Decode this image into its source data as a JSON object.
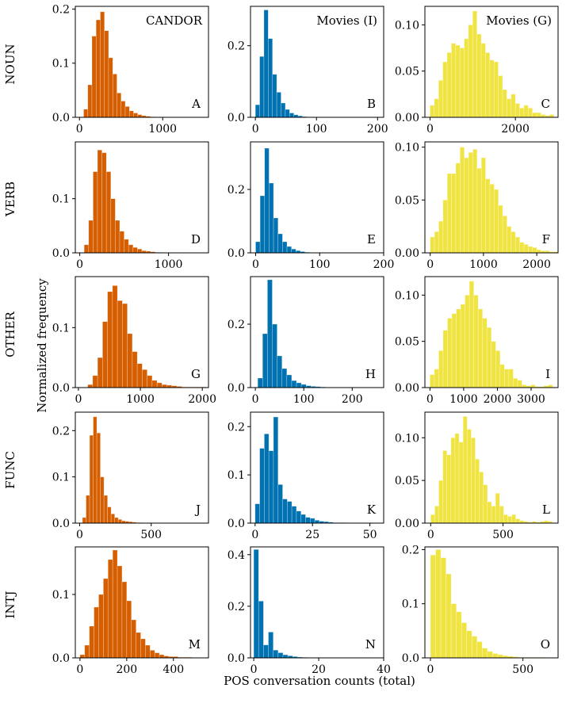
{
  "figure": {
    "ylabel": "Normalized frequency",
    "xlabel": "POS conversation counts (total)",
    "columns": [
      "CANDOR",
      "Movies (I)",
      "Movies (G)"
    ],
    "rows": [
      "NOUN",
      "VERB",
      "OTHER",
      "FUNC",
      "INTJ"
    ]
  },
  "colors": {
    "CANDOR": "#d55e00",
    "Movies (I)": "#0072b2",
    "Movies (G)": "#f0e442"
  },
  "chart_data": [
    {
      "type": "bar",
      "panel": "A",
      "row": "NOUN",
      "dataset": "CANDOR",
      "title": "CANDOR",
      "bin_start": 50,
      "bin_width": 50,
      "values": [
        0.015,
        0.06,
        0.15,
        0.18,
        0.195,
        0.16,
        0.11,
        0.08,
        0.045,
        0.03,
        0.02,
        0.012,
        0.008,
        0.005,
        0.003,
        0.002,
        0.001
      ],
      "xlim": [
        -50,
        1550
      ],
      "ylim": [
        0,
        0.205
      ],
      "xticks": [
        0,
        1000
      ],
      "yticks": [
        0,
        0.1,
        0.2
      ],
      "yticklabels": [
        "0.0",
        "0.1",
        "0.2"
      ]
    },
    {
      "type": "bar",
      "panel": "B",
      "row": "NOUN",
      "dataset": "Movies (I)",
      "title": "Movies (I)",
      "bin_start": 0,
      "bin_width": 7,
      "values": [
        0.035,
        0.17,
        0.3,
        0.22,
        0.12,
        0.07,
        0.04,
        0.022,
        0.012,
        0.007,
        0.004,
        0.002,
        0.001,
        0.001
      ],
      "xlim": [
        -8,
        210
      ],
      "ylim": [
        0,
        0.31
      ],
      "xticks": [
        0,
        100,
        200
      ],
      "yticks": [
        0,
        0.2
      ],
      "yticklabels": [
        "0.0",
        "0.2"
      ]
    },
    {
      "type": "bar",
      "panel": "C",
      "row": "NOUN",
      "dataset": "Movies (G)",
      "title": "Movies (G)",
      "bin_start": 0,
      "bin_width": 100,
      "values": [
        0.013,
        0.02,
        0.04,
        0.06,
        0.07,
        0.08,
        0.078,
        0.075,
        0.085,
        0.1,
        0.115,
        0.09,
        0.08,
        0.07,
        0.062,
        0.06,
        0.045,
        0.03,
        0.02,
        0.025,
        0.015,
        0.01,
        0.013,
        0.01,
        0.005,
        0.005,
        0.003,
        0.002,
        0.003
      ],
      "xlim": [
        -120,
        3000
      ],
      "ylim": [
        0,
        0.12
      ],
      "xticks": [
        0,
        2000
      ],
      "yticks": [
        0,
        0.05,
        0.1
      ],
      "yticklabels": [
        "0.00",
        "0.05",
        "0.10"
      ]
    },
    {
      "type": "bar",
      "panel": "D",
      "row": "VERB",
      "dataset": "CANDOR",
      "bin_start": 50,
      "bin_width": 50,
      "values": [
        0.015,
        0.06,
        0.15,
        0.19,
        0.185,
        0.15,
        0.1,
        0.06,
        0.04,
        0.025,
        0.015,
        0.01,
        0.007,
        0.004,
        0.003,
        0.002,
        0.001
      ],
      "xlim": [
        -50,
        1450
      ],
      "ylim": [
        0,
        0.205
      ],
      "xticks": [
        0,
        1000
      ],
      "yticks": [
        0,
        0.1
      ],
      "yticklabels": [
        "0.0",
        "0.1"
      ]
    },
    {
      "type": "bar",
      "panel": "E",
      "row": "VERB",
      "dataset": "Movies (I)",
      "bin_start": 0,
      "bin_width": 7,
      "values": [
        0.035,
        0.18,
        0.33,
        0.22,
        0.11,
        0.06,
        0.035,
        0.02,
        0.012,
        0.007,
        0.004,
        0.002,
        0.001,
        0.001
      ],
      "xlim": [
        -8,
        200
      ],
      "ylim": [
        0,
        0.35
      ],
      "xticks": [
        0,
        100,
        200
      ],
      "yticks": [
        0,
        0.2
      ],
      "yticklabels": [
        "0.0",
        "0.2"
      ]
    },
    {
      "type": "bar",
      "panel": "F",
      "row": "VERB",
      "dataset": "Movies (G)",
      "bin_start": 0,
      "bin_width": 80,
      "values": [
        0.015,
        0.02,
        0.03,
        0.05,
        0.075,
        0.075,
        0.085,
        0.1,
        0.09,
        0.095,
        0.098,
        0.08,
        0.09,
        0.07,
        0.065,
        0.06,
        0.045,
        0.035,
        0.025,
        0.02,
        0.015,
        0.01,
        0.008,
        0.006,
        0.005,
        0.003,
        0.002,
        0.002,
        0.001,
        0.001
      ],
      "xlim": [
        -100,
        2400
      ],
      "ylim": [
        0,
        0.105
      ],
      "xticks": [
        0,
        1000,
        2000
      ],
      "yticks": [
        0,
        0.05,
        0.1
      ],
      "yticklabels": [
        "0.00",
        "0.05",
        "0.10"
      ]
    },
    {
      "type": "bar",
      "panel": "G",
      "row": "OTHER",
      "dataset": "CANDOR",
      "bin_start": 150,
      "bin_width": 80,
      "values": [
        0.005,
        0.02,
        0.05,
        0.11,
        0.16,
        0.17,
        0.145,
        0.14,
        0.09,
        0.06,
        0.04,
        0.03,
        0.02,
        0.012,
        0.008,
        0.005,
        0.004,
        0.003,
        0.002,
        0.001,
        0.001,
        0.001,
        0.001,
        0.001
      ],
      "xlim": [
        -50,
        2100
      ],
      "ylim": [
        0,
        0.185
      ],
      "xticks": [
        0,
        1000,
        2000
      ],
      "yticks": [
        0,
        0.1
      ],
      "yticklabels": [
        "0.0",
        "0.1"
      ]
    },
    {
      "type": "bar",
      "panel": "H",
      "row": "OTHER",
      "dataset": "Movies (I)",
      "bin_start": 5,
      "bin_width": 10,
      "values": [
        0.03,
        0.17,
        0.34,
        0.2,
        0.1,
        0.06,
        0.04,
        0.022,
        0.015,
        0.01,
        0.006,
        0.004,
        0.003,
        0.002,
        0.001,
        0.001,
        0.001
      ],
      "xlim": [
        -10,
        265
      ],
      "ylim": [
        0,
        0.35
      ],
      "xticks": [
        0,
        100,
        200
      ],
      "yticks": [
        0,
        0.2
      ],
      "yticklabels": [
        "0.0",
        "0.2"
      ]
    },
    {
      "type": "bar",
      "panel": "I",
      "row": "OTHER",
      "dataset": "Movies (G)",
      "bin_start": 0,
      "bin_width": 130,
      "values": [
        0.014,
        0.02,
        0.04,
        0.062,
        0.075,
        0.08,
        0.085,
        0.09,
        0.1,
        0.115,
        0.1,
        0.085,
        0.075,
        0.065,
        0.05,
        0.04,
        0.025,
        0.02,
        0.02,
        0.01,
        0.008,
        0.003,
        0.002,
        0.003,
        0.001,
        0.001,
        0.002,
        0.003
      ],
      "xlim": [
        -150,
        3800
      ],
      "ylim": [
        0,
        0.12
      ],
      "xticks": [
        0,
        1000,
        2000,
        3000
      ],
      "yticks": [
        0,
        0.05,
        0.1
      ],
      "yticklabels": [
        "0.00",
        "0.05",
        "0.10"
      ]
    },
    {
      "type": "bar",
      "panel": "J",
      "row": "FUNC",
      "dataset": "CANDOR",
      "bin_start": 20,
      "bin_width": 25,
      "values": [
        0.012,
        0.06,
        0.19,
        0.23,
        0.195,
        0.1,
        0.06,
        0.035,
        0.02,
        0.012,
        0.008,
        0.005,
        0.004,
        0.003,
        0.002,
        0.001,
        0.001
      ],
      "xlim": [
        -30,
        900
      ],
      "ylim": [
        0,
        0.24
      ],
      "xticks": [
        0,
        500
      ],
      "yticks": [
        0,
        0.1,
        0.2
      ],
      "yticklabels": [
        "0.0",
        "0.1",
        "0.2"
      ]
    },
    {
      "type": "bar",
      "panel": "K",
      "row": "FUNC",
      "dataset": "Movies (I)",
      "bin_start": 0,
      "bin_width": 2,
      "values": [
        0.04,
        0.155,
        0.185,
        0.15,
        0.22,
        0.08,
        0.05,
        0.045,
        0.035,
        0.025,
        0.018,
        0.012,
        0.01,
        0.006,
        0.004,
        0.003,
        0.002,
        0.001,
        0.001,
        0.001
      ],
      "xlim": [
        -2,
        56
      ],
      "ylim": [
        0,
        0.23
      ],
      "xticks": [
        0,
        25,
        50
      ],
      "yticks": [
        0,
        0.1,
        0.2
      ],
      "yticklabels": [
        "0.0",
        "0.1",
        "0.2"
      ]
    },
    {
      "type": "bar",
      "panel": "L",
      "row": "FUNC",
      "dataset": "Movies (G)",
      "bin_start": 0,
      "bin_width": 28,
      "values": [
        0.01,
        0.02,
        0.05,
        0.085,
        0.08,
        0.1,
        0.105,
        0.095,
        0.125,
        0.11,
        0.1,
        0.075,
        0.06,
        0.045,
        0.025,
        0.02,
        0.035,
        0.02,
        0.01,
        0.008,
        0.01,
        0.005,
        0.003,
        0.002,
        0.001,
        0.002,
        0.001,
        0.002,
        0.003,
        0.002
      ],
      "xlim": [
        -40,
        880
      ],
      "ylim": [
        0,
        0.13
      ],
      "xticks": [
        0,
        500
      ],
      "yticks": [
        0,
        0.05,
        0.1
      ],
      "yticklabels": [
        "0.00",
        "0.05",
        "0.10"
      ]
    },
    {
      "type": "bar",
      "panel": "M",
      "row": "INTJ",
      "dataset": "CANDOR",
      "bin_start": 0,
      "bin_width": 20,
      "values": [
        0.005,
        0.02,
        0.05,
        0.08,
        0.1,
        0.125,
        0.155,
        0.17,
        0.145,
        0.12,
        0.09,
        0.06,
        0.04,
        0.03,
        0.02,
        0.012,
        0.008,
        0.005,
        0.003,
        0.002,
        0.002,
        0.001,
        0.001,
        0.001
      ],
      "xlim": [
        -20,
        550
      ],
      "ylim": [
        0,
        0.175
      ],
      "xticks": [
        0,
        200,
        400
      ],
      "yticks": [
        0,
        0.1
      ],
      "yticklabels": [
        "0.0",
        "0.1"
      ]
    },
    {
      "type": "bar",
      "panel": "N",
      "row": "INTJ",
      "dataset": "Movies (I)",
      "bin_start": 0,
      "bin_width": 1.5,
      "values": [
        0.42,
        0.22,
        0.05,
        0.1,
        0.03,
        0.02,
        0.012,
        0.008,
        0.005,
        0.003,
        0.002,
        0.001,
        0.001,
        0.001
      ],
      "xlim": [
        -1,
        40
      ],
      "ylim": [
        0,
        0.43
      ],
      "xticks": [
        0,
        20,
        40
      ],
      "yticks": [
        0,
        0.2,
        0.4
      ],
      "yticklabels": [
        "0.0",
        "0.2",
        "0.4"
      ]
    },
    {
      "type": "bar",
      "panel": "O",
      "row": "INTJ",
      "dataset": "Movies (G)",
      "bin_start": 0,
      "bin_width": 28,
      "values": [
        0.19,
        0.2,
        0.185,
        0.155,
        0.1,
        0.085,
        0.065,
        0.05,
        0.04,
        0.03,
        0.018,
        0.012,
        0.008,
        0.006,
        0.004,
        0.003,
        0.002,
        0.001,
        0.001,
        0.001,
        0.001,
        0.001
      ],
      "xlim": [
        -30,
        690
      ],
      "ylim": [
        0,
        0.205
      ],
      "xticks": [
        0,
        500
      ],
      "yticks": [
        0,
        0.1,
        0.2
      ],
      "yticklabels": [
        "0.0",
        "0.1",
        "0.2"
      ]
    }
  ]
}
